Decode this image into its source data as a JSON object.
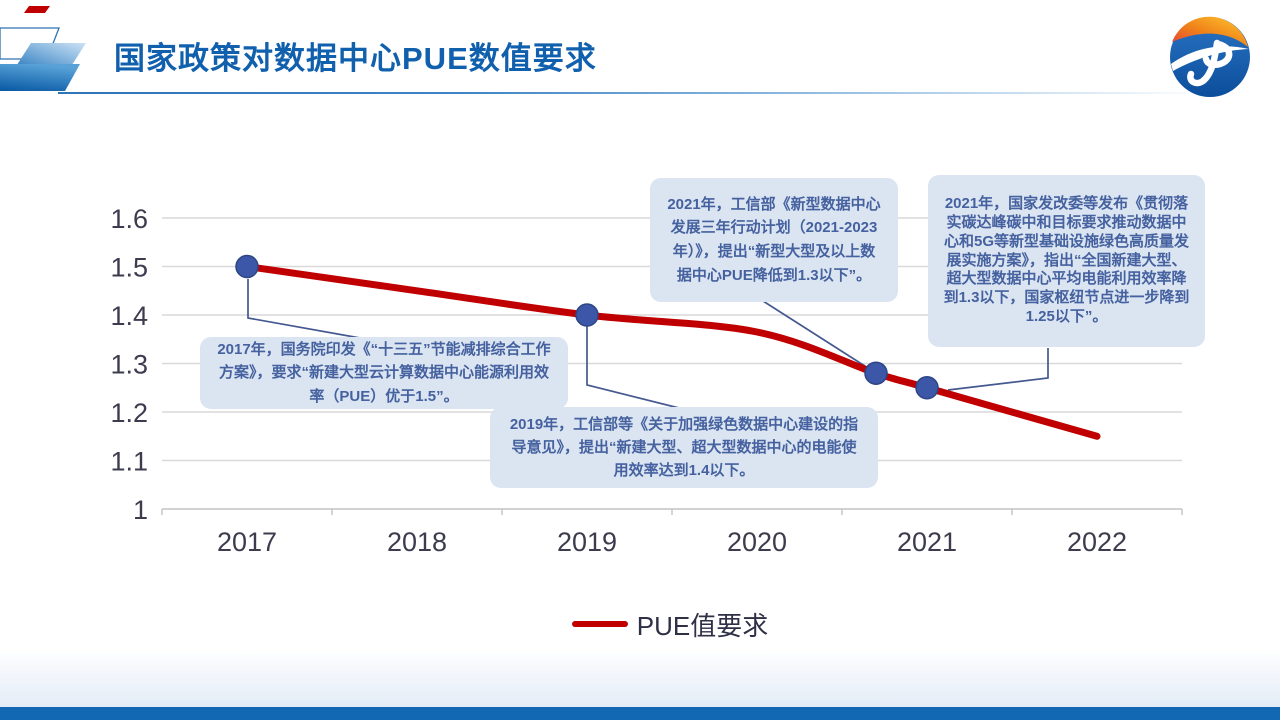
{
  "header": {
    "title": "国家政策对数据中心PUE数值要求"
  },
  "legend": {
    "label": "PUE值要求"
  },
  "callouts": [
    {
      "id": "policy-2017",
      "text": "2017年，国务院印发《“十三五”节能减排综合工作方案》，要求“新建大型云计算数据中心能源利用效率（PUE）优于1.5”。"
    },
    {
      "id": "policy-2019",
      "text": "2019年，工信部等《关于加强绿色数据中心建设的指导意见》，提出“新建大型、超大型数据中心的电能使用效率达到1.4以下。"
    },
    {
      "id": "policy-2021-miit",
      "text": "2021年，工信部《新型数据中心发展三年行动计划（2021-2023年）》，提出“新型大型及以上数据中心PUE降低到1.3以下”。"
    },
    {
      "id": "policy-2021-ndrc",
      "text": "2021年，国家发改委等发布《贯彻落实碳达峰碳中和目标要求推动数据中心和5G等新型基础设施绿色高质量发展实施方案》，指出“全国新建大型、超大型数据中心平均电能利用效率降到1.3以下，国家枢纽节点进一步降到1.25以下”。"
    }
  ],
  "colors": {
    "title_blue": "#1060ae",
    "line_red": "#c00000",
    "marker_navy": "#3d57a8",
    "callout_bg": "#dbe5f2",
    "callout_text": "#45619f",
    "connector": "#44598f",
    "gridline": "#d9d9d9",
    "footer_blue": "#1268b3"
  },
  "chart_data": {
    "type": "line",
    "title": "",
    "xlabel": "",
    "ylabel": "",
    "x_ticks": [
      2017,
      2018,
      2019,
      2020,
      2021,
      2022
    ],
    "y_ticks": [
      1.6,
      1.5,
      1.4,
      1.3,
      1.2,
      1.1,
      1
    ],
    "ylim": [
      1.0,
      1.6
    ],
    "grid": "horizontal",
    "legend_position": "bottom",
    "series": [
      {
        "name": "PUE值要求",
        "color": "#c00000",
        "x": [
          2017,
          2018,
          2019,
          2020,
          2020.7,
          2021,
          2022
        ],
        "y": [
          1.5,
          1.45,
          1.4,
          1.365,
          1.28,
          1.25,
          1.15
        ],
        "markers": [
          {
            "x": 2017,
            "y": 1.5
          },
          {
            "x": 2019,
            "y": 1.4
          },
          {
            "x": 2020.7,
            "y": 1.28
          },
          {
            "x": 2021,
            "y": 1.25
          }
        ]
      }
    ]
  }
}
